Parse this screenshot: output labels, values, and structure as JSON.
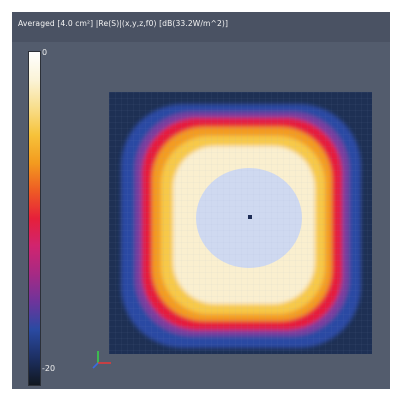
{
  "viewport": {
    "title": "Averaged [4.0 cm²] |Re(S)|(x,y,z,f0) [dB(33.2W/m^2)]"
  },
  "colorbar": {
    "max_label": "0",
    "min_label": "-20",
    "stops": [
      "#ffffff",
      "#fbf4d8",
      "#f8de8c",
      "#f6c23a",
      "#f39b1f",
      "#ee5b24",
      "#e6203a",
      "#d1246f",
      "#a62a84",
      "#6e349b",
      "#2a4aa2",
      "#1d3064",
      "#111820"
    ]
  },
  "field": {
    "colors": {
      "background": "#1e3054",
      "outer_band": "#2c49a3",
      "purple": "#7a3e9e",
      "red": "#e51f3d",
      "orange": "#f39c24",
      "yellow": "#f7c94a",
      "pale": "#faefcf",
      "core": "#cfd9f0"
    }
  },
  "icons": {
    "axes": "axes-triad-icon",
    "center": "center-marker-icon"
  }
}
